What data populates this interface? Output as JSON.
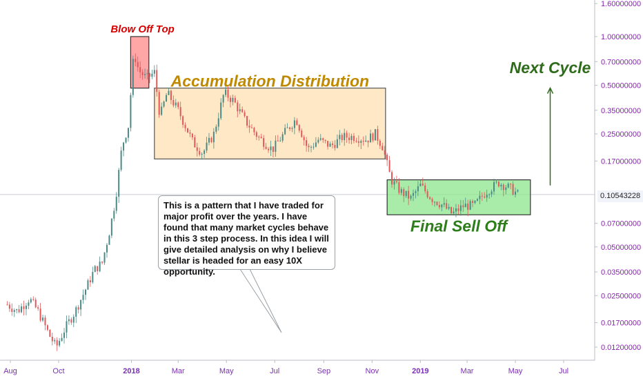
{
  "chart_data": {
    "type": "candlestick",
    "scale": "log",
    "grid": false,
    "yticks": [
      "1.60000000",
      "1.00000000",
      "0.70000000",
      "0.50000000",
      "0.35000000",
      "0.25000000",
      "0.17000000",
      "0.07000000",
      "0.05000000",
      "0.03500000",
      "0.02500000",
      "0.01700000",
      "0.01200000"
    ],
    "ytick_values": [
      1.6,
      1.0,
      0.7,
      0.5,
      0.35,
      0.25,
      0.17,
      0.07,
      0.05,
      0.035,
      0.025,
      0.017,
      0.012
    ],
    "xticks": [
      {
        "label": "Aug",
        "date": "2017-08-01"
      },
      {
        "label": "Oct",
        "date": "2017-10-01"
      },
      {
        "label": "2018",
        "date": "2018-01-01",
        "bold": true
      },
      {
        "label": "Mar",
        "date": "2018-03-01"
      },
      {
        "label": "May",
        "date": "2018-05-01"
      },
      {
        "label": "Jul",
        "date": "2018-07-01"
      },
      {
        "label": "Sep",
        "date": "2018-09-01"
      },
      {
        "label": "Nov",
        "date": "2018-11-01"
      },
      {
        "label": "2019",
        "date": "2019-01-01",
        "bold": true
      },
      {
        "label": "Mar",
        "date": "2019-03-01"
      },
      {
        "label": "May",
        "date": "2019-05-01"
      },
      {
        "label": "Jul",
        "date": "2019-07-01"
      }
    ],
    "current_price": {
      "label": "0.10543228",
      "value": 0.10543228
    },
    "price_path": [
      [
        "2017-07-28",
        0.022
      ],
      [
        "2017-08-10",
        0.02
      ],
      [
        "2017-08-25",
        0.024
      ],
      [
        "2017-09-05",
        0.02
      ],
      [
        "2017-09-20",
        0.014
      ],
      [
        "2017-09-28",
        0.012
      ],
      [
        "2017-10-10",
        0.016
      ],
      [
        "2017-10-22",
        0.02
      ],
      [
        "2017-11-05",
        0.028
      ],
      [
        "2017-11-15",
        0.036
      ],
      [
        "2017-11-25",
        0.04
      ],
      [
        "2017-12-05",
        0.065
      ],
      [
        "2017-12-12",
        0.1
      ],
      [
        "2017-12-20",
        0.21
      ],
      [
        "2017-12-28",
        0.28
      ],
      [
        "2018-01-04",
        0.8
      ],
      [
        "2018-01-10",
        0.62
      ],
      [
        "2018-01-20",
        0.55
      ],
      [
        "2018-01-30",
        0.6
      ],
      [
        "2018-02-06",
        0.32
      ],
      [
        "2018-02-15",
        0.45
      ],
      [
        "2018-03-01",
        0.35
      ],
      [
        "2018-03-20",
        0.22
      ],
      [
        "2018-04-01",
        0.19
      ],
      [
        "2018-04-15",
        0.25
      ],
      [
        "2018-04-28",
        0.45
      ],
      [
        "2018-05-10",
        0.4
      ],
      [
        "2018-05-25",
        0.3
      ],
      [
        "2018-06-10",
        0.24
      ],
      [
        "2018-06-28",
        0.2
      ],
      [
        "2018-07-15",
        0.26
      ],
      [
        "2018-07-28",
        0.31
      ],
      [
        "2018-08-12",
        0.2
      ],
      [
        "2018-08-25",
        0.23
      ],
      [
        "2018-09-10",
        0.21
      ],
      [
        "2018-09-25",
        0.24
      ],
      [
        "2018-10-10",
        0.24
      ],
      [
        "2018-10-25",
        0.23
      ],
      [
        "2018-11-05",
        0.25
      ],
      [
        "2018-11-14",
        0.21
      ],
      [
        "2018-11-25",
        0.13
      ],
      [
        "2018-12-07",
        0.11
      ],
      [
        "2018-12-20",
        0.1
      ],
      [
        "2019-01-01",
        0.12
      ],
      [
        "2019-01-15",
        0.1
      ],
      [
        "2019-01-30",
        0.09
      ],
      [
        "2019-02-10",
        0.08
      ],
      [
        "2019-02-25",
        0.09
      ],
      [
        "2019-03-10",
        0.09
      ],
      [
        "2019-03-25",
        0.11
      ],
      [
        "2019-04-10",
        0.125
      ],
      [
        "2019-04-25",
        0.115
      ],
      [
        "2019-05-05",
        0.105
      ]
    ],
    "annotations": {
      "blow_off_top": {
        "label": "Blow Off Top",
        "x0": "2017-12-31",
        "x1": "2018-01-23",
        "y0": 0.48,
        "y1": 1.0,
        "color": "#ff6b6b"
      },
      "accumulation": {
        "label": "Accumulation Distribution",
        "x0": "2018-01-30",
        "x1": "2018-11-18",
        "y0": 0.175,
        "y1": 0.48,
        "color": "#ffe0b2"
      },
      "final_sell_off": {
        "label": "Final Sell Off",
        "x0": "2018-11-20",
        "x1": "2019-05-20",
        "y0": 0.079,
        "y1": 0.13,
        "color": "#8ce68c"
      },
      "next_cycle": {
        "label": "Next Cycle",
        "x": "2019-06-14",
        "y0": 0.12,
        "y1": 0.5
      }
    },
    "note": "This is a pattern that I have traded for major profit over the years. I have found that many market cycles behave in this 3 step process. In this idea I will give detailed analysis on why I believe stellar is headed for an easy 10X opportunity."
  }
}
